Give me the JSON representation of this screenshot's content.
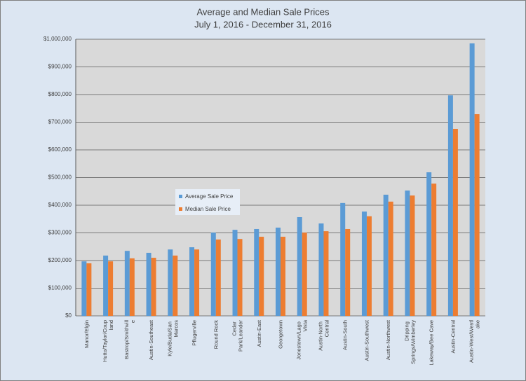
{
  "chart_data": {
    "type": "bar",
    "title": "Average and Median Sale Prices",
    "subtitle": "July 1, 2016 - December 31, 2016",
    "categories": [
      "Manor/Elgin",
      "Hutto/Taylor/Coupland",
      "Bastrop/Smithville",
      "Austin-Southeast",
      "Kyle/Buda/San Marcos",
      "Pflugerville",
      "Round Rock",
      "Cedar Park/Leander",
      "Austin-East",
      "Georgetown",
      "Jonestown/Lago Vista",
      "Austin-North Central",
      "Austin-South",
      "Austin-Southwest",
      "Austin-Northwest",
      "Dripping Springs/Wimberley",
      "Lakeway/Bee Cave",
      "Austin-Central",
      "Austin-West/Westlake"
    ],
    "series": [
      {
        "name": "Average Sale Price",
        "color": "#5b9bd5",
        "values": [
          197000,
          218000,
          235000,
          228000,
          240000,
          248000,
          301000,
          311000,
          314000,
          319000,
          357000,
          334000,
          408000,
          377000,
          438000,
          453000,
          519000,
          797000,
          985000
        ]
      },
      {
        "name": "Median Sale Price",
        "color": "#ed7d31",
        "values": [
          190000,
          197000,
          208000,
          210000,
          218000,
          240000,
          276000,
          278000,
          286000,
          286000,
          301000,
          306000,
          314000,
          360000,
          413000,
          435000,
          478000,
          676000,
          729000
        ]
      }
    ],
    "ylim": [
      0,
      1000000
    ],
    "yticks": [
      {
        "value": 0,
        "label": "$0"
      },
      {
        "value": 100000,
        "label": "$100,000"
      },
      {
        "value": 200000,
        "label": "$200,000"
      },
      {
        "value": 300000,
        "label": "$300,000"
      },
      {
        "value": 400000,
        "label": "$400,000"
      },
      {
        "value": 500000,
        "label": "$500,000"
      },
      {
        "value": 600000,
        "label": "$600,000"
      },
      {
        "value": 700000,
        "label": "$700,000"
      },
      {
        "value": 800000,
        "label": "$800,000"
      },
      {
        "value": 900000,
        "label": "$900,000"
      },
      {
        "value": 1000000,
        "label": "$1,000,000"
      }
    ],
    "grid": true,
    "legend": "center-left"
  }
}
